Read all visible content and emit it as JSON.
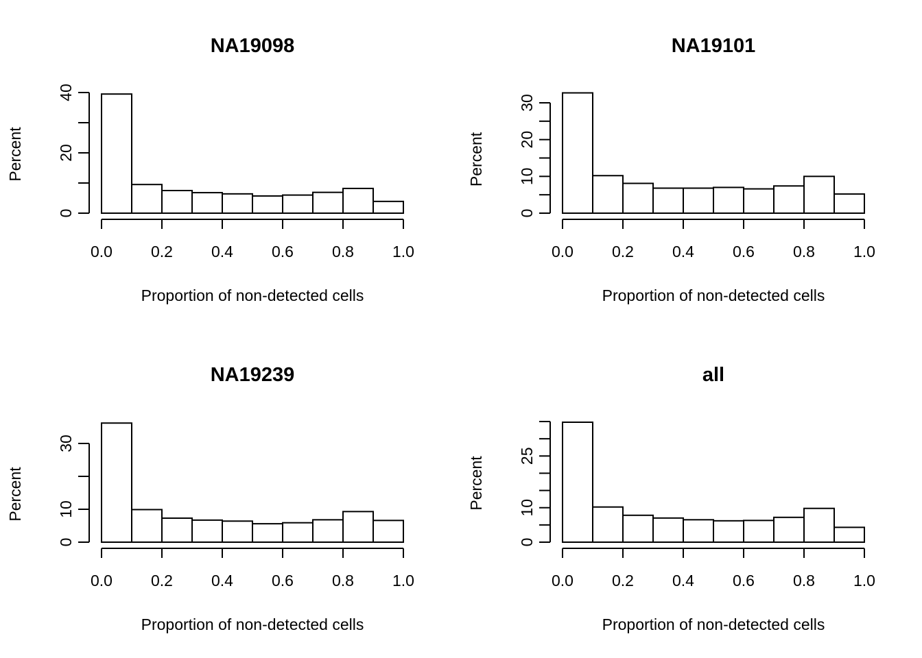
{
  "chart_data": [
    {
      "type": "bar",
      "title": "NA19098",
      "xlabel": "Proportion of non-detected cells",
      "ylabel": "Percent",
      "bin_edges": [
        0.0,
        0.1,
        0.2,
        0.3,
        0.4,
        0.5,
        0.6,
        0.7,
        0.8,
        0.9,
        1.0
      ],
      "values": [
        39.5,
        9.5,
        7.5,
        6.8,
        6.4,
        5.7,
        6.0,
        6.9,
        8.2,
        3.9
      ],
      "xlim": [
        0,
        1
      ],
      "x_ticks": [
        "0.0",
        "0.2",
        "0.4",
        "0.6",
        "0.8",
        "1.0"
      ],
      "y_ticks": [
        0,
        10,
        20,
        30,
        40
      ],
      "y_tick_labels": [
        "0",
        "",
        "20",
        "",
        "40"
      ]
    },
    {
      "type": "bar",
      "title": "NA19101",
      "xlabel": "Proportion of non-detected cells",
      "ylabel": "Percent",
      "bin_edges": [
        0.0,
        0.1,
        0.2,
        0.3,
        0.4,
        0.5,
        0.6,
        0.7,
        0.8,
        0.9,
        1.0
      ],
      "values": [
        32.7,
        10.2,
        8.1,
        6.8,
        6.8,
        7.0,
        6.6,
        7.4,
        10.0,
        5.2
      ],
      "xlim": [
        0,
        1
      ],
      "x_ticks": [
        "0.0",
        "0.2",
        "0.4",
        "0.6",
        "0.8",
        "1.0"
      ],
      "y_ticks": [
        0,
        5,
        10,
        15,
        20,
        25,
        30
      ],
      "y_tick_labels": [
        "0",
        "",
        "10",
        "",
        "20",
        "",
        "30"
      ]
    },
    {
      "type": "bar",
      "title": "NA19239",
      "xlabel": "Proportion of non-detected cells",
      "ylabel": "Percent",
      "bin_edges": [
        0.0,
        0.1,
        0.2,
        0.3,
        0.4,
        0.5,
        0.6,
        0.7,
        0.8,
        0.9,
        1.0
      ],
      "values": [
        36.2,
        9.9,
        7.3,
        6.7,
        6.4,
        5.6,
        5.9,
        6.8,
        9.3,
        6.6
      ],
      "xlim": [
        0,
        1
      ],
      "x_ticks": [
        "0.0",
        "0.2",
        "0.4",
        "0.6",
        "0.8",
        "1.0"
      ],
      "y_ticks": [
        0,
        10,
        20,
        30
      ],
      "y_tick_labels": [
        "0",
        "10",
        "",
        "30"
      ]
    },
    {
      "type": "bar",
      "title": "all",
      "xlabel": "Proportion of non-detected cells",
      "ylabel": "Percent",
      "bin_edges": [
        0.0,
        0.1,
        0.2,
        0.3,
        0.4,
        0.5,
        0.6,
        0.7,
        0.8,
        0.9,
        1.0
      ],
      "values": [
        34.8,
        10.2,
        7.8,
        7.0,
        6.5,
        6.2,
        6.3,
        7.2,
        9.8,
        4.3
      ],
      "xlim": [
        0,
        1
      ],
      "x_ticks": [
        "0.0",
        "0.2",
        "0.4",
        "0.6",
        "0.8",
        "1.0"
      ],
      "y_ticks": [
        0,
        5,
        10,
        15,
        20,
        25,
        30,
        35
      ],
      "y_tick_labels": [
        "0",
        "",
        "10",
        "",
        "",
        "25",
        "",
        ""
      ]
    }
  ]
}
